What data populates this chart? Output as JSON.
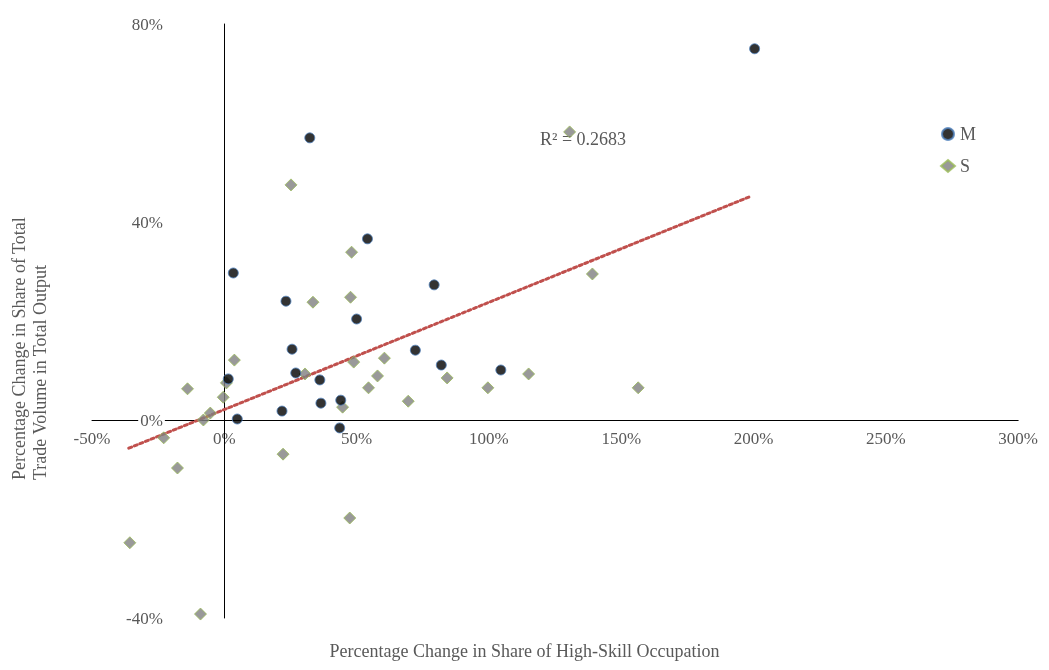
{
  "chart_data": {
    "type": "scatter",
    "xlabel": "Percentage Change in Share of High-Skill Occupation",
    "ylabel": "Percentage Change in Share of Total Trade Volume in Total Output",
    "annotations": [
      "R² = 0.2683"
    ],
    "xlim": [
      -50,
      300
    ],
    "xticks": [
      {
        "value": -50,
        "label": "-50%"
      },
      {
        "value": 0,
        "label": "0%"
      },
      {
        "value": 50,
        "label": "50%"
      },
      {
        "value": 100,
        "label": "100%"
      },
      {
        "value": 150,
        "label": "150%"
      },
      {
        "value": 200,
        "label": "200%"
      },
      {
        "value": 250,
        "label": "250%"
      },
      {
        "value": 300,
        "label": "300%"
      }
    ],
    "ylim": [
      -40,
      80
    ],
    "yticks": [
      {
        "value": -40,
        "label": "-40%"
      },
      {
        "value": 0,
        "label": "0%"
      },
      {
        "value": 40,
        "label": "40%"
      },
      {
        "value": 80,
        "label": "80%"
      }
    ],
    "legend": "right",
    "series": [
      {
        "name": "M",
        "color": "#000000",
        "marker": "circle",
        "x": [
          200.4,
          32.3,
          54.1,
          3.4,
          23.3,
          79.3,
          50,
          25.6,
          72.2,
          82,
          104.5,
          1.5,
          27,
          36.1,
          36.5,
          44,
          21.8,
          4.9,
          43.6
        ],
        "values": [
          75,
          57,
          36.6,
          29.7,
          24,
          27.3,
          20.4,
          14.3,
          14.1,
          11.1,
          10.1,
          8.3,
          9.5,
          8.1,
          3.4,
          4,
          1.8,
          0.2,
          -1.6
        ]
      },
      {
        "name": "S",
        "color": "#7f7f7f",
        "marker": "diamond",
        "x": [
          130.5,
          25.2,
          48.1,
          33.5,
          47.7,
          139.1,
          3.8,
          48.9,
          60.5,
          -13.9,
          0.8,
          -0.4,
          30.5,
          57.9,
          54.5,
          84.2,
          115,
          99.6,
          156.4,
          69.5,
          44.7,
          -5.3,
          -7.9,
          -22.9,
          -17.7,
          22.2,
          47.4,
          -35.7,
          -9
        ],
        "values": [
          58.2,
          47.5,
          33.9,
          23.8,
          24.8,
          29.5,
          12.1,
          11.7,
          12.5,
          6.3,
          7.5,
          4.6,
          9.3,
          8.9,
          6.5,
          8.5,
          9.3,
          6.5,
          6.5,
          3.8,
          2.6,
          1.4,
          0,
          -3.6,
          -9.7,
          -6.9,
          -19.8,
          -24.8,
          -39.2
        ]
      },
      {
        "type": "line",
        "color": "#c0504d",
        "line_style": "dotted",
        "marker": "none",
        "x": [
          -36.1,
          198.5
        ],
        "values": [
          -5.7,
          45.1
        ]
      }
    ]
  }
}
